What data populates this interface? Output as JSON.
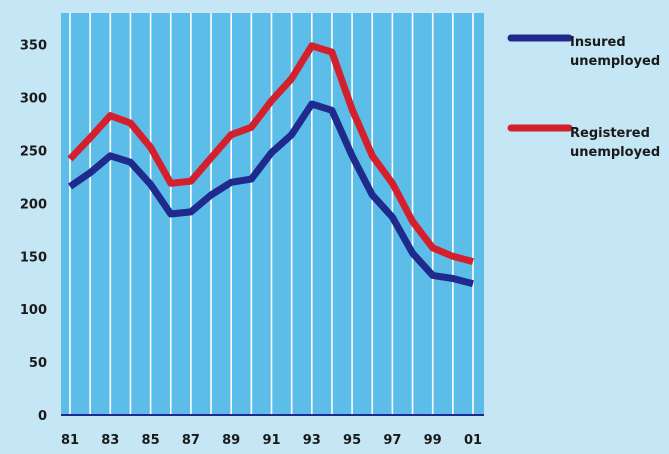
{
  "chart_data": {
    "type": "line",
    "x": [
      "1981",
      "1982",
      "1983",
      "1984",
      "1985",
      "1986",
      "1987",
      "1988",
      "1989",
      "1990",
      "1991",
      "1992",
      "1993",
      "1994",
      "1995",
      "1996",
      "1997",
      "1998",
      "1999",
      "2000",
      "2001"
    ],
    "x_tick_labels": [
      "81",
      "83",
      "85",
      "87",
      "89",
      "91",
      "93",
      "95",
      "97",
      "99",
      "01"
    ],
    "series": [
      {
        "name": "Insured unemployed",
        "label_lines": [
          "Insured",
          "unemployed"
        ],
        "color": "#1f2a8c",
        "values": [
          216,
          229,
          245,
          239,
          218,
          190,
          192,
          208,
          220,
          223,
          248,
          265,
          294,
          288,
          245,
          208,
          187,
          153,
          132,
          129,
          124
        ]
      },
      {
        "name": "Registered unemployed",
        "label_lines": [
          "Registered",
          "unemployed"
        ],
        "color": "#d4202c",
        "values": [
          242,
          262,
          283,
          276,
          253,
          219,
          221,
          243,
          265,
          272,
          297,
          318,
          349,
          343,
          289,
          245,
          219,
          183,
          158,
          150,
          145
        ]
      }
    ],
    "ylim": [
      0,
      380
    ],
    "y_ticks": [
      0,
      50,
      100,
      150,
      200,
      250,
      300,
      350
    ],
    "grid": "vertical",
    "legend_position": "right",
    "title": "",
    "xlabel": "",
    "ylabel": "",
    "colors": {
      "background": "#c5e6f5",
      "plot_area": "#5bbde8",
      "gridlines": "#ffffff",
      "baseline": "#1f2a8c"
    }
  }
}
